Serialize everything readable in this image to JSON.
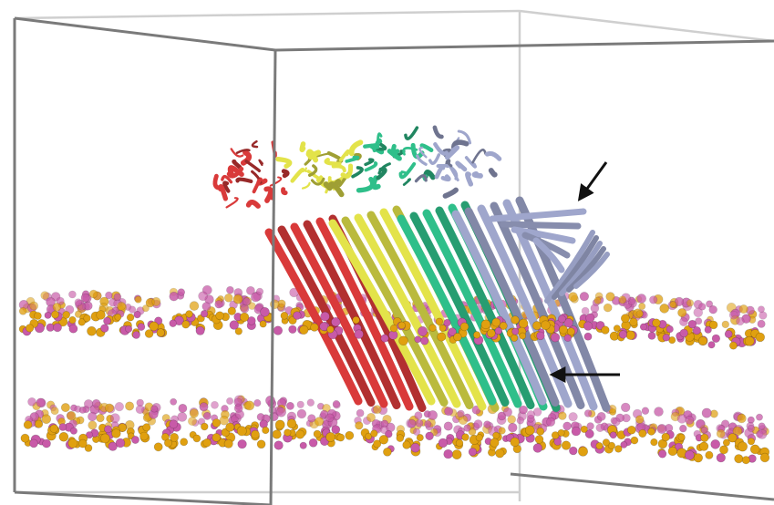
{
  "scene": {
    "subject": "protein-membrane-simulation",
    "colors": {
      "background": "#ffffff",
      "box_edge_dark": "#6e6e6e",
      "box_edge_light": "#c8c8c8",
      "subunit_1": "#d93a3a",
      "subunit_2": "#e3e34a",
      "subunit_3": "#2fbf8a",
      "subunit_4": "#9fa6cc",
      "lipid_headgroup_gold": "#e0a010",
      "lipid_headgroup_pink": "#c85aa8",
      "arrow": "#111111"
    },
    "annotations": [
      {
        "name": "arrow-upper",
        "icon": "arrow-pointing-down-left-icon"
      },
      {
        "name": "arrow-lower",
        "icon": "arrow-pointing-left-icon"
      }
    ]
  }
}
